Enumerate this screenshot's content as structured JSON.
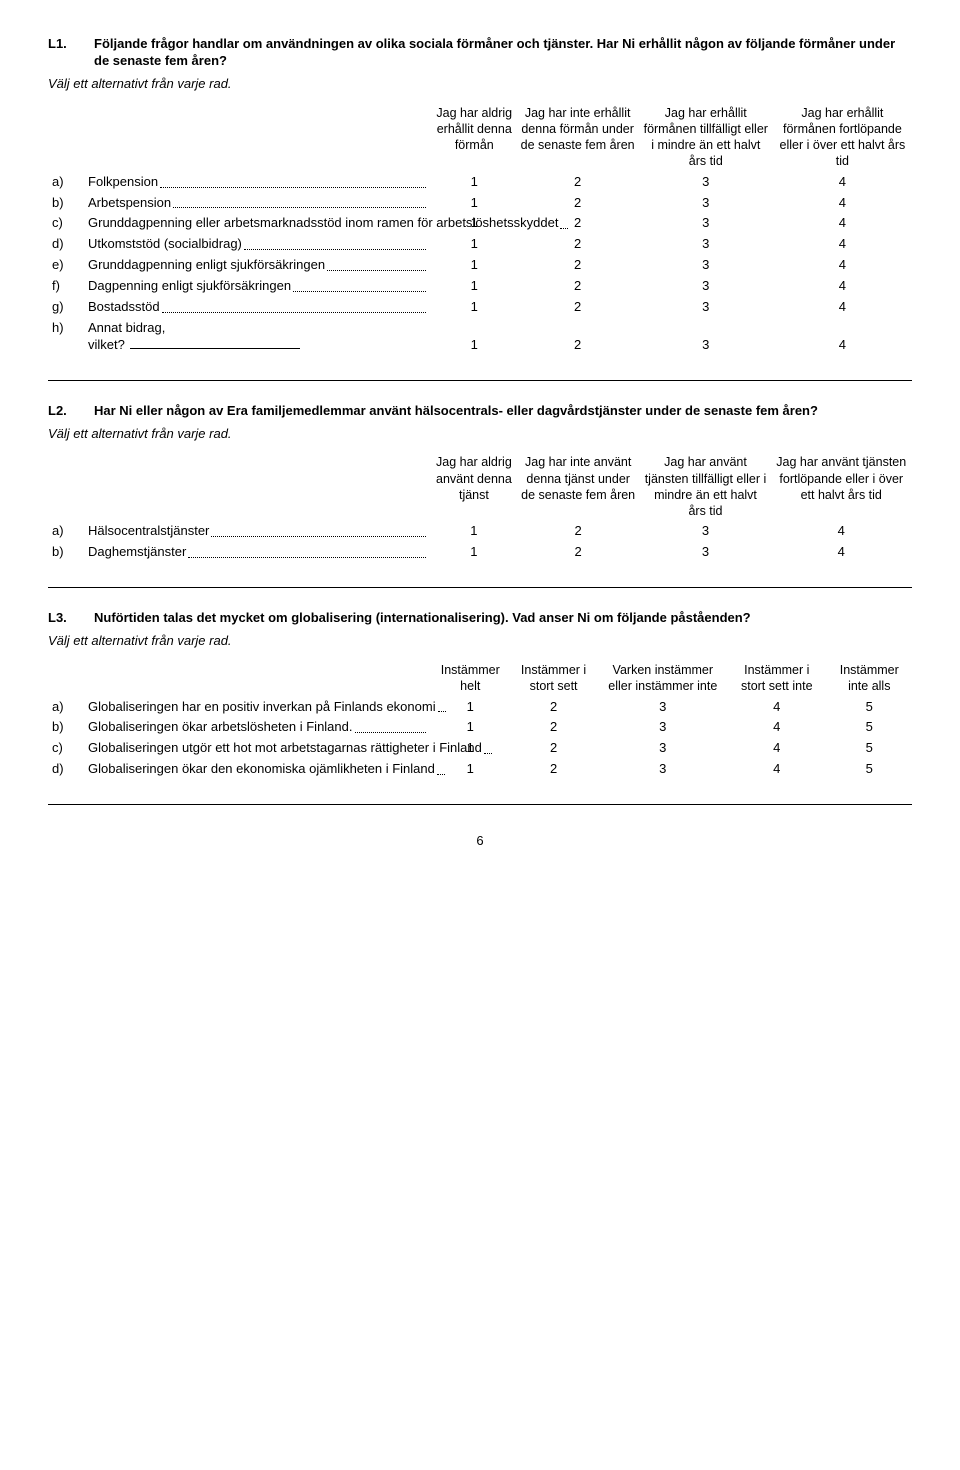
{
  "page_number": "6",
  "L1": {
    "num": "L1.",
    "title": "Följande frågor handlar om användningen av olika sociala förmåner och tjänster. Har Ni erhållit någon av följande förmåner under de senaste fem åren?",
    "instruction": "Välj ett alternativt från varje rad.",
    "columns": [
      "Jag har aldrig erhållit denna förmån",
      "Jag har inte erhållit denna förmån under de senaste fem åren",
      "Jag har erhållit förmånen tillfälligt eller i mindre än ett halvt års tid",
      "Jag har erhållit förmånen fortlöpande eller i över ett halvt års tid"
    ],
    "rows": [
      {
        "letter": "a)",
        "label": "Folkpension",
        "vals": [
          "1",
          "2",
          "3",
          "4"
        ]
      },
      {
        "letter": "b)",
        "label": "Arbetspension",
        "vals": [
          "1",
          "2",
          "3",
          "4"
        ]
      },
      {
        "letter": "c)",
        "label_multi": "Grunddagpenning eller arbetsmarknadsstöd inom ramen för arbetslöshetsskyddet",
        "vals": [
          "1",
          "2",
          "3",
          "4"
        ]
      },
      {
        "letter": "d)",
        "label": "Utkomststöd (socialbidrag)",
        "vals": [
          "1",
          "2",
          "3",
          "4"
        ]
      },
      {
        "letter": "e)",
        "label": "Grunddagpenning enligt sjukförsäkringen",
        "vals": [
          "1",
          "2",
          "3",
          "4"
        ]
      },
      {
        "letter": "f)",
        "label": "Dagpenning enligt sjukförsäkringen",
        "vals": [
          "1",
          "2",
          "3",
          "4"
        ]
      },
      {
        "letter": "g)",
        "label": "Bostadsstöd",
        "vals": [
          "1",
          "2",
          "3",
          "4"
        ]
      },
      {
        "letter": "h)",
        "label_prefix": "Annat bidrag,",
        "label_fill": "vilket?",
        "vals": [
          "1",
          "2",
          "3",
          "4"
        ]
      }
    ]
  },
  "L2": {
    "num": "L2.",
    "title": "Har Ni eller någon av Era familjemedlemmar använt hälsocentrals- eller dagvårdstjänster under de senaste fem åren?",
    "instruction": "Välj ett alternativt från varje rad.",
    "columns": [
      "Jag har aldrig använt denna tjänst",
      "Jag har inte använt denna tjänst under de senaste fem åren",
      "Jag har använt tjänsten tillfälligt eller i mindre än ett halvt års tid",
      "Jag har använt tjänsten fortlöpande eller i över ett halvt års tid"
    ],
    "rows": [
      {
        "letter": "a)",
        "label": "Hälsocentralstjänster",
        "vals": [
          "1",
          "2",
          "3",
          "4"
        ]
      },
      {
        "letter": "b)",
        "label": "Daghemstjänster",
        "vals": [
          "1",
          "2",
          "3",
          "4"
        ]
      }
    ]
  },
  "L3": {
    "num": "L3.",
    "title": "Nuförtiden talas det mycket om globalisering (internationalisering). Vad anser Ni om följande påståenden?",
    "instruction": "Välj ett alternativt från varje rad.",
    "columns": [
      "Instämmer helt",
      "Instämmer i stort sett",
      "Varken instämmer eller instämmer inte",
      "Instämmer i stort sett inte",
      "Instämmer inte alls"
    ],
    "rows": [
      {
        "letter": "a)",
        "label_multi": "Globaliseringen har en positiv inverkan på Finlands ekonomi",
        "vals": [
          "1",
          "2",
          "3",
          "4",
          "5"
        ]
      },
      {
        "letter": "b)",
        "label_multi": "Globaliseringen ökar arbetslösheten i Finland.",
        "vals": [
          "1",
          "2",
          "3",
          "4",
          "5"
        ]
      },
      {
        "letter": "c)",
        "label_multi": "Globaliseringen utgör ett hot mot arbetstagarnas rättigheter i Finland",
        "vals": [
          "1",
          "2",
          "3",
          "4",
          "5"
        ]
      },
      {
        "letter": "d)",
        "label_multi": "Globaliseringen ökar den ekonomiska ojämlikheten i Finland",
        "vals": [
          "1",
          "2",
          "3",
          "4",
          "5"
        ]
      }
    ]
  }
}
